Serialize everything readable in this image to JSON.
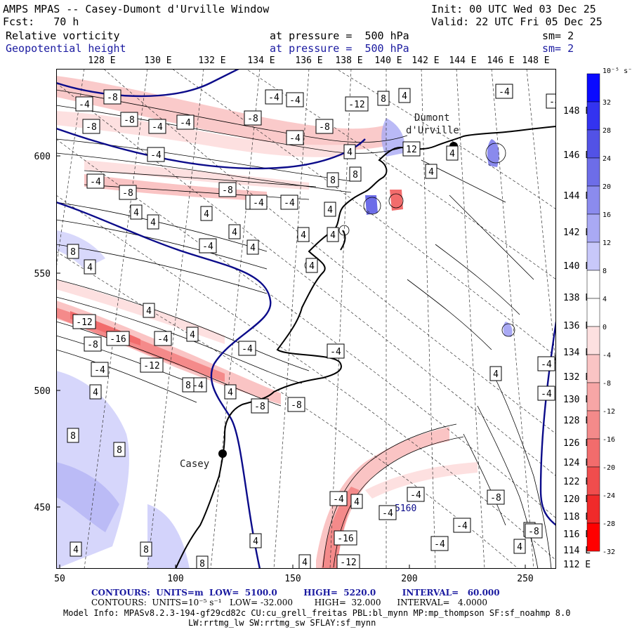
{
  "header": {
    "title": "AMPS MPAS -- Casey-Dumont d'Urville Window",
    "init": "Init: 00 UTC Wed 03 Dec 25",
    "fcst": "Fcst:   70 h",
    "valid": "Valid: 22 UTC Fri 05 Dec 25",
    "field1": "Relative vorticity",
    "field1_level": "at pressure =  500 hPa",
    "field1_sm": "sm= 2",
    "field2": "Geopotential height",
    "field2_level": "at pressure =  500 hPa",
    "field2_sm": "sm= 2"
  },
  "axes": {
    "top_longitudes": [
      "128 E",
      "130 E",
      "132 E",
      "134 E",
      "136 E",
      "138 E",
      "140 E",
      "142 E",
      "144 E",
      "146 E",
      "148 E"
    ],
    "right_longitudes": [
      "148 E",
      "146 E",
      "144 E",
      "142 E",
      "140 E",
      "138 E",
      "136 E",
      "134 E",
      "132 E",
      "130 E",
      "128 E",
      "126 E",
      "124 E",
      "122 E",
      "120 E",
      "118 E",
      "116 E",
      "114 E",
      "112 E"
    ],
    "x_ticks": [
      "50",
      "100",
      "150",
      "200",
      "250"
    ],
    "y_ticks": [
      "600",
      "550",
      "500",
      "450"
    ]
  },
  "places": {
    "casey": "Casey",
    "dumont": "Dumont",
    "durville": "d'Urville",
    "contour_label_5160": "5160"
  },
  "colorbar": {
    "unit": "10⁻⁵ s⁻¹",
    "labels": [
      "32",
      "28",
      "24",
      "20",
      "16",
      "12",
      "8",
      "4",
      "0",
      "-4",
      "-8",
      "-12",
      "-16",
      "-20",
      "-24",
      "-28",
      "-32"
    ],
    "colors": [
      "#0a0aff",
      "#3333f0",
      "#5252e6",
      "#6d6de8",
      "#8b8bee",
      "#a9a9f4",
      "#c8c8fa",
      "#ffffff",
      "#ffffff",
      "#fde0e0",
      "#fac4c4",
      "#f7a6a6",
      "#f48a8a",
      "#f26c6c",
      "#f04d4d",
      "#f02a2a",
      "#ff0000"
    ]
  },
  "contour_labels": [
    {
      "t": "-4"
    },
    {
      "t": "-8"
    },
    {
      "t": "-8"
    },
    {
      "t": "-8"
    },
    {
      "t": "-4"
    },
    {
      "t": "-4"
    },
    {
      "t": "-8"
    },
    {
      "t": "-4"
    },
    {
      "t": "-4"
    },
    {
      "t": "-4"
    },
    {
      "t": "-12"
    },
    {
      "t": "8"
    },
    {
      "t": "4"
    },
    {
      "t": "-4"
    },
    {
      "t": "-4"
    },
    {
      "t": "-8"
    },
    {
      "t": "-4"
    },
    {
      "t": "4"
    },
    {
      "t": "12"
    },
    {
      "t": "-4"
    },
    {
      "t": "-4"
    },
    {
      "t": "-8"
    },
    {
      "t": "-8"
    },
    {
      "t": "4"
    },
    {
      "t": "-4"
    },
    {
      "t": "-4"
    },
    {
      "t": "4"
    },
    {
      "t": "4"
    },
    {
      "t": "8"
    },
    {
      "t": "8"
    },
    {
      "t": "4"
    },
    {
      "t": "4"
    },
    {
      "t": "-4"
    },
    {
      "t": "4"
    },
    {
      "t": "4"
    },
    {
      "t": "4"
    },
    {
      "t": "8"
    },
    {
      "t": "4"
    },
    {
      "t": "4"
    },
    {
      "t": "4"
    },
    {
      "t": "4"
    },
    {
      "t": "-12"
    },
    {
      "t": "-8"
    },
    {
      "t": "-16"
    },
    {
      "t": "-4"
    },
    {
      "t": "4"
    },
    {
      "t": "-4"
    },
    {
      "t": "-4"
    },
    {
      "t": "-4"
    },
    {
      "t": "-12"
    },
    {
      "t": "4"
    },
    {
      "t": "-4"
    },
    {
      "t": "4"
    },
    {
      "t": "-8"
    },
    {
      "t": "-8"
    },
    {
      "t": "4"
    },
    {
      "t": "-4"
    },
    {
      "t": "-4"
    },
    {
      "t": "8"
    },
    {
      "t": "8"
    },
    {
      "t": "8"
    },
    {
      "t": "-4"
    },
    {
      "t": "-4"
    },
    {
      "t": "-8"
    },
    {
      "t": "-4"
    },
    {
      "t": "-4"
    },
    {
      "t": "8"
    },
    {
      "t": "4"
    },
    {
      "t": "4"
    },
    {
      "t": "-16"
    },
    {
      "t": "-12"
    },
    {
      "t": "8"
    },
    {
      "t": "8"
    },
    {
      "t": "-4"
    },
    {
      "t": "4"
    },
    {
      "t": "-8"
    },
    {
      "t": "4"
    },
    {
      "t": "4"
    },
    {
      "t": "4"
    }
  ],
  "footer": {
    "line1": "CONTOURS:  UNITS=m  LOW=  5100.0         HIGH=  5220.0         INTERVAL=   60.000",
    "line2": "CONTOURS:  UNITS=10⁻⁵ s⁻¹   LOW= -32.000        HIGH=  32.000      INTERVAL=   4.0000",
    "line3": "Model Info: MPASv8.2.3-194-gf29cd82c CU:cu_grell_freitas PBL:bl_mynn MP:mp_thompson SF:sf_noahmp 8.0",
    "line4": "LW:rrtmg_lw SW:rrtmg_sw SFLAY:sf_mynn"
  }
}
